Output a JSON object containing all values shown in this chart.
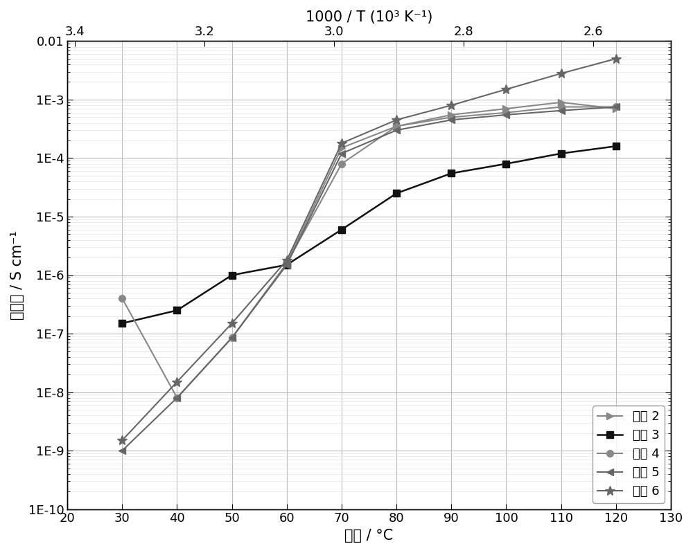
{
  "title_top": "1000 / T (10³ K⁻¹)",
  "xlabel": "温度 / °C",
  "ylabel": "电导率 / S cm⁻¹",
  "temp_x": [
    30,
    40,
    50,
    60,
    70,
    80,
    90,
    100,
    110,
    120
  ],
  "xlim": [
    20,
    130
  ],
  "series": {
    "实例 2": {
      "color": "#888888",
      "marker": ">",
      "markersize": 7,
      "linewidth": 1.5,
      "y": [
        null,
        null,
        null,
        1.6e-06,
        0.00015,
        0.00035,
        0.00055,
        0.0007,
        0.0009,
        0.0007
      ]
    },
    "实例 3": {
      "color": "#111111",
      "marker": "s",
      "markersize": 7,
      "linewidth": 1.8,
      "y": [
        1.5e-07,
        2.5e-07,
        1e-06,
        1.5e-06,
        6e-06,
        2.5e-05,
        5.5e-05,
        8e-05,
        0.00012,
        0.00016
      ]
    },
    "实例 4": {
      "color": "#888888",
      "marker": "o",
      "markersize": 7,
      "linewidth": 1.5,
      "y": [
        4e-07,
        8e-09,
        8.5e-08,
        1.6e-06,
        8e-05,
        0.00035,
        0.0005,
        0.0006,
        0.00075,
        0.00075
      ]
    },
    "实例 5": {
      "color": "#666666",
      "marker": "<",
      "markersize": 7,
      "linewidth": 1.5,
      "y": [
        1e-09,
        8e-09,
        8.5e-08,
        1.5e-06,
        0.00012,
        0.0003,
        0.00045,
        0.00055,
        0.00065,
        0.00075
      ]
    },
    "实例 6": {
      "color": "#666666",
      "marker": "*",
      "markersize": 10,
      "linewidth": 1.5,
      "y": [
        1.5e-09,
        1.5e-08,
        1.5e-07,
        1.8e-06,
        0.00018,
        0.00045,
        0.0008,
        0.0015,
        0.0028,
        0.005
      ]
    }
  },
  "top_axis_ticks": [
    3.4,
    3.2,
    3.0,
    2.8,
    2.6
  ],
  "top_axis_tick_labels": [
    "3.4",
    "3.2",
    "3.0",
    "2.8",
    "2.6"
  ],
  "ytick_labels": [
    "1E-10",
    "1E-9",
    "1E-8",
    "1E-7",
    "1E-6",
    "1E-5",
    "1E-4",
    "1E-3",
    "0.01"
  ],
  "background_color": "#ffffff",
  "legend_loc": "lower right",
  "font_size": 13
}
